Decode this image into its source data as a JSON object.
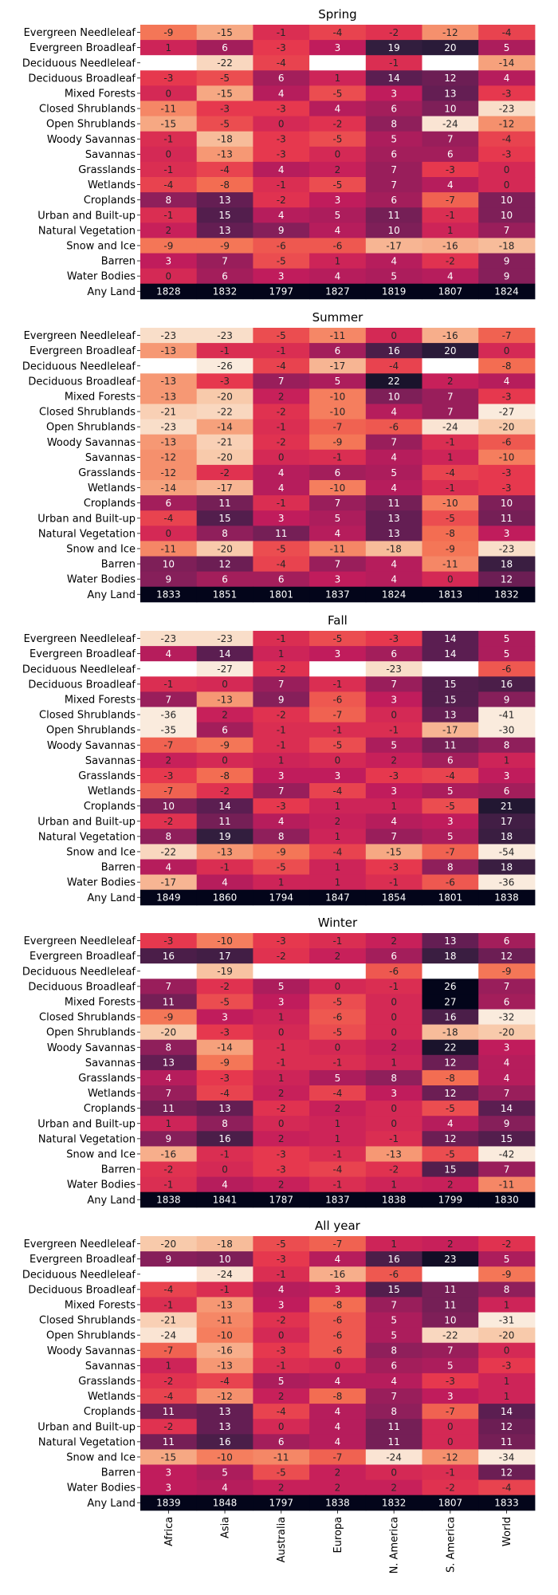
{
  "colors": {
    "scale": [
      "#03051a",
      "#2e1e3c",
      "#5c1e51",
      "#8c1f5b",
      "#c21c5c",
      "#e5364e",
      "#f47052",
      "#f6a07b",
      "#f8c6a5",
      "#faebdd"
    ],
    "missing": "#ffffff"
  },
  "chart_data": {
    "type": "heatmap",
    "rows": [
      "Evergreen Needleleaf",
      "Evergreen Broadleaf",
      "Deciduous Needleleaf",
      "Deciduous Broadleaf",
      "Mixed Forests",
      "Closed Shrublands",
      "Open Shrublands",
      "Woody Savannas",
      "Savannas",
      "Grasslands",
      "Wetlands",
      "Croplands",
      "Urban and Built-up",
      "Natural Vegetation",
      "Snow and Ice",
      "Barren",
      "Water Bodies",
      "Any Land"
    ],
    "columns": [
      "Africa",
      "Asia",
      "Australia",
      "Europa",
      "N. America",
      "S. America",
      "World"
    ],
    "panels": [
      {
        "title": "Spring",
        "values": [
          [
            -9,
            -15,
            -1,
            -4,
            -2,
            -12,
            -4
          ],
          [
            1,
            6,
            -3,
            3,
            19,
            20,
            5
          ],
          [
            null,
            -22,
            -4,
            null,
            -1,
            null,
            -14
          ],
          [
            -3,
            -5,
            6,
            1,
            14,
            12,
            4
          ],
          [
            0,
            -15,
            4,
            -5,
            3,
            13,
            -3
          ],
          [
            -11,
            -3,
            -3,
            4,
            6,
            10,
            -23
          ],
          [
            -15,
            -5,
            0,
            -2,
            8,
            -24,
            -12
          ],
          [
            -1,
            -18,
            -3,
            -5,
            5,
            7,
            -4
          ],
          [
            0,
            -13,
            -3,
            0,
            6,
            6,
            -3
          ],
          [
            -1,
            -4,
            4,
            2,
            7,
            -3,
            0
          ],
          [
            -4,
            -8,
            -1,
            -5,
            7,
            4,
            0
          ],
          [
            8,
            13,
            -2,
            3,
            6,
            -7,
            10
          ],
          [
            -1,
            15,
            4,
            5,
            11,
            -1,
            10
          ],
          [
            2,
            13,
            9,
            4,
            10,
            1,
            7
          ],
          [
            -9,
            -9,
            -6,
            -6,
            -17,
            -16,
            -18
          ],
          [
            3,
            7,
            -5,
            1,
            4,
            -2,
            9
          ],
          [
            0,
            6,
            3,
            4,
            5,
            4,
            9
          ],
          [
            1828,
            1832,
            1797,
            1827,
            1819,
            1807,
            1824
          ]
        ]
      },
      {
        "title": "Summer",
        "values": [
          [
            -23,
            -23,
            -5,
            -11,
            0,
            -16,
            -7
          ],
          [
            -13,
            -1,
            -1,
            6,
            16,
            20,
            0
          ],
          [
            null,
            -26,
            -4,
            -17,
            -4,
            null,
            -8
          ],
          [
            -13,
            -3,
            7,
            5,
            22,
            2,
            4
          ],
          [
            -13,
            -20,
            2,
            -10,
            10,
            7,
            -3
          ],
          [
            -21,
            -22,
            -2,
            -10,
            4,
            7,
            -27
          ],
          [
            -23,
            -14,
            -1,
            -7,
            -6,
            -24,
            -20
          ],
          [
            -13,
            -21,
            -2,
            -9,
            7,
            -1,
            -6
          ],
          [
            -12,
            -20,
            0,
            -1,
            4,
            1,
            -10
          ],
          [
            -12,
            -2,
            4,
            6,
            5,
            -4,
            -3
          ],
          [
            -14,
            -17,
            4,
            -10,
            4,
            -1,
            -3
          ],
          [
            6,
            11,
            -1,
            7,
            11,
            -10,
            10
          ],
          [
            -4,
            15,
            3,
            5,
            13,
            -5,
            11
          ],
          [
            0,
            8,
            11,
            4,
            13,
            -8,
            3
          ],
          [
            -11,
            -20,
            -5,
            -11,
            -18,
            -9,
            -23
          ],
          [
            10,
            12,
            -4,
            7,
            4,
            -11,
            18
          ],
          [
            9,
            6,
            6,
            3,
            4,
            0,
            12
          ],
          [
            1833,
            1851,
            1801,
            1837,
            1824,
            1813,
            1832
          ]
        ]
      },
      {
        "title": "Fall",
        "values": [
          [
            -23,
            -23,
            -1,
            -5,
            -3,
            14,
            5
          ],
          [
            4,
            14,
            1,
            3,
            6,
            14,
            5
          ],
          [
            null,
            -27,
            -2,
            null,
            -23,
            null,
            -6
          ],
          [
            -1,
            0,
            7,
            -1,
            7,
            15,
            16
          ],
          [
            7,
            -13,
            9,
            -6,
            3,
            15,
            9
          ],
          [
            -36,
            2,
            -2,
            -7,
            0,
            13,
            -41
          ],
          [
            -35,
            6,
            -1,
            -1,
            -1,
            -17,
            -30
          ],
          [
            -7,
            -9,
            -1,
            -5,
            5,
            11,
            8
          ],
          [
            2,
            0,
            1,
            0,
            2,
            6,
            1
          ],
          [
            -3,
            -8,
            3,
            3,
            -3,
            -4,
            3
          ],
          [
            -7,
            -2,
            7,
            -4,
            3,
            5,
            6
          ],
          [
            10,
            14,
            -3,
            1,
            1,
            -5,
            21
          ],
          [
            -2,
            11,
            4,
            2,
            4,
            3,
            17
          ],
          [
            8,
            19,
            8,
            1,
            7,
            5,
            18
          ],
          [
            -22,
            -13,
            -9,
            -4,
            -15,
            -7,
            -54
          ],
          [
            4,
            -1,
            -5,
            1,
            -3,
            8,
            18
          ],
          [
            -17,
            4,
            1,
            1,
            -1,
            -6,
            -36
          ],
          [
            1849,
            1860,
            1794,
            1847,
            1854,
            1801,
            1838
          ]
        ]
      },
      {
        "title": "Winter",
        "values": [
          [
            -3,
            -10,
            -3,
            -1,
            2,
            13,
            6
          ],
          [
            16,
            17,
            -2,
            2,
            6,
            18,
            12
          ],
          [
            null,
            -19,
            null,
            null,
            -6,
            null,
            -9
          ],
          [
            7,
            -2,
            5,
            0,
            -1,
            26,
            7
          ],
          [
            11,
            -5,
            3,
            -5,
            0,
            27,
            6
          ],
          [
            -9,
            3,
            1,
            -6,
            0,
            16,
            -32
          ],
          [
            -20,
            -3,
            0,
            -5,
            0,
            -18,
            -20
          ],
          [
            8,
            -14,
            -1,
            0,
            2,
            22,
            3
          ],
          [
            13,
            -9,
            -1,
            -1,
            1,
            12,
            4
          ],
          [
            4,
            -3,
            1,
            5,
            8,
            -8,
            4
          ],
          [
            7,
            -4,
            2,
            -4,
            3,
            12,
            7
          ],
          [
            11,
            13,
            -2,
            2,
            0,
            -5,
            14
          ],
          [
            1,
            8,
            0,
            1,
            0,
            4,
            9
          ],
          [
            9,
            16,
            2,
            1,
            -1,
            12,
            15
          ],
          [
            -16,
            -1,
            -3,
            -1,
            -13,
            -5,
            -42
          ],
          [
            -2,
            0,
            -3,
            -4,
            -2,
            15,
            7
          ],
          [
            -1,
            4,
            2,
            -1,
            1,
            2,
            -11
          ],
          [
            1838,
            1841,
            1787,
            1837,
            1838,
            1799,
            1830
          ]
        ]
      },
      {
        "title": "All year",
        "values": [
          [
            -20,
            -18,
            -5,
            -7,
            1,
            2,
            -2
          ],
          [
            9,
            10,
            -3,
            4,
            16,
            23,
            5
          ],
          [
            null,
            -24,
            -1,
            -16,
            -6,
            null,
            -9
          ],
          [
            -4,
            -1,
            4,
            3,
            15,
            11,
            8
          ],
          [
            -1,
            -13,
            3,
            -8,
            7,
            11,
            1
          ],
          [
            -21,
            -11,
            -2,
            -6,
            5,
            10,
            -31
          ],
          [
            -24,
            -10,
            0,
            -6,
            5,
            -22,
            -20
          ],
          [
            -7,
            -16,
            -3,
            -6,
            8,
            7,
            0
          ],
          [
            1,
            -13,
            -1,
            0,
            6,
            5,
            -3
          ],
          [
            -2,
            -4,
            5,
            4,
            4,
            -3,
            1
          ],
          [
            -4,
            -12,
            2,
            -8,
            7,
            3,
            1
          ],
          [
            11,
            13,
            -4,
            4,
            8,
            -7,
            14
          ],
          [
            -2,
            13,
            0,
            4,
            11,
            0,
            12
          ],
          [
            11,
            16,
            6,
            4,
            11,
            0,
            11
          ],
          [
            -15,
            -10,
            -11,
            -7,
            -24,
            -12,
            -34
          ],
          [
            3,
            5,
            -5,
            2,
            0,
            -1,
            12
          ],
          [
            3,
            4,
            2,
            2,
            2,
            -2,
            -4
          ],
          [
            1839,
            1848,
            1797,
            1838,
            1832,
            1807,
            1833
          ]
        ]
      }
    ]
  }
}
